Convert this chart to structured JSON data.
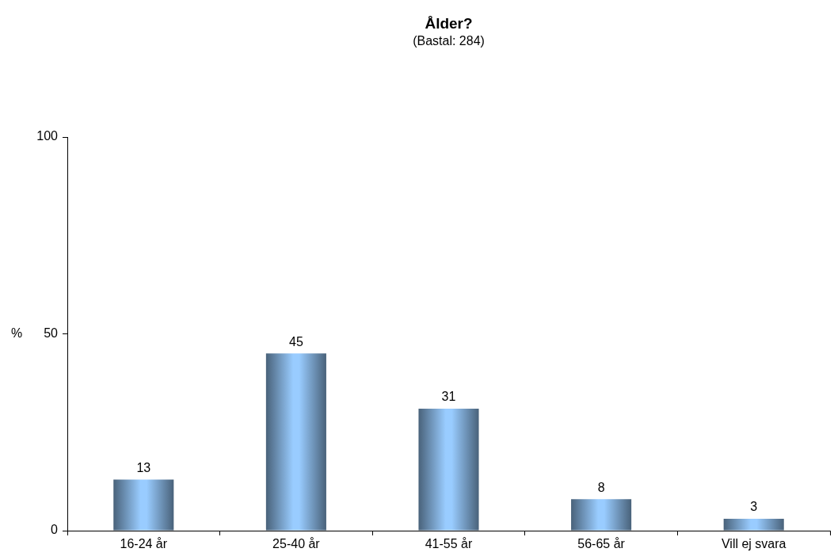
{
  "chart_data": {
    "type": "bar",
    "title": "Ålder?",
    "subtitle": "(Bastal: 284)",
    "ylabel": "%",
    "categories": [
      "16-24 år",
      "25-40 år",
      "41-55 år",
      "56-65 år",
      "Vill ej svara"
    ],
    "values": [
      13,
      45,
      31,
      8,
      3
    ],
    "color": "#99ccff",
    "ylim": [
      0,
      100
    ],
    "yticks": [
      0,
      50,
      100
    ],
    "data_labels": true
  }
}
